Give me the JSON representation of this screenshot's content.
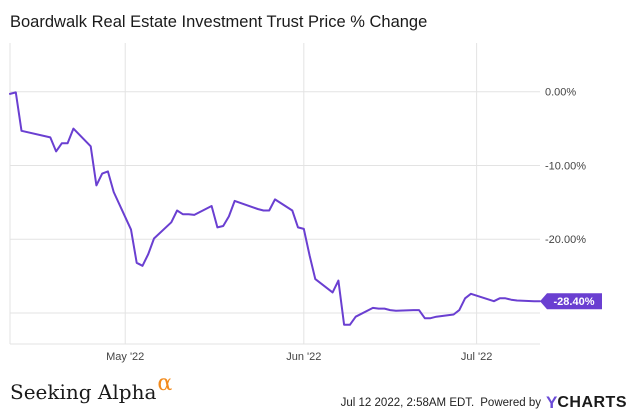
{
  "header": {
    "title": "Boardwalk Real Estate Investment Trust Price % Change"
  },
  "footer": {
    "brand_left_text": "Seeking Alpha",
    "brand_left_mark": "α",
    "timestamp": "Jul 12 2022, 2:58AM EDT.",
    "powered_by": "Powered by",
    "brand_right_mark": "Y",
    "brand_right_text": "CHARTS"
  },
  "colors": {
    "line": "#6a3fd1",
    "grid": "#e3e3e3",
    "last_badge": "#6a3fd1",
    "axis_text": "#444444",
    "brand_alpha": "#f28a1c",
    "brand_ycharts": "#6a4bd6"
  },
  "chart_data": {
    "type": "line",
    "title": "Boardwalk Real Estate Investment Trust Price % Change",
    "xlabel": "",
    "ylabel": "",
    "x_ticks": [
      "May '22",
      "Jun '22",
      "Jul '22"
    ],
    "y_ticks": [
      "0.00%",
      "-10.00%",
      "-20.00%"
    ],
    "y_tick_values": [
      0,
      -10,
      -20
    ],
    "ylim": [
      -34.2,
      6.6
    ],
    "xlim": [
      "2022-04-11",
      "2022-07-12"
    ],
    "grid": true,
    "last_value_label": "-28.40%",
    "series": [
      {
        "x": [
          "2022-04-11",
          "2022-04-12",
          "2022-04-13",
          "2022-04-18",
          "2022-04-19",
          "2022-04-20",
          "2022-04-21",
          "2022-04-22",
          "2022-04-25",
          "2022-04-26",
          "2022-04-27",
          "2022-04-28",
          "2022-04-29",
          "2022-05-02",
          "2022-05-03",
          "2022-05-04",
          "2022-05-05",
          "2022-05-06",
          "2022-05-09",
          "2022-05-10",
          "2022-05-11",
          "2022-05-12",
          "2022-05-13",
          "2022-05-16",
          "2022-05-17",
          "2022-05-18",
          "2022-05-19",
          "2022-05-20",
          "2022-05-24",
          "2022-05-25",
          "2022-05-26",
          "2022-05-27",
          "2022-05-30",
          "2022-05-31",
          "2022-06-01",
          "2022-06-02",
          "2022-06-03",
          "2022-06-06",
          "2022-06-07",
          "2022-06-08",
          "2022-06-09",
          "2022-06-10",
          "2022-06-13",
          "2022-06-14",
          "2022-06-15",
          "2022-06-16",
          "2022-06-17",
          "2022-06-20",
          "2022-06-21",
          "2022-06-22",
          "2022-06-23",
          "2022-06-24",
          "2022-06-27",
          "2022-06-28",
          "2022-06-29",
          "2022-06-30",
          "2022-07-04",
          "2022-07-05",
          "2022-07-06",
          "2022-07-07",
          "2022-07-08",
          "2022-07-11",
          "2022-07-12"
        ],
        "values": [
          -0.3,
          -0.1,
          -5.3,
          -6.2,
          -8.1,
          -7.0,
          -7.0,
          -5.0,
          -7.4,
          -12.7,
          -11.1,
          -10.8,
          -13.6,
          -18.7,
          -23.2,
          -23.6,
          -22.0,
          -19.9,
          -17.7,
          -16.1,
          -16.6,
          -16.6,
          -16.7,
          -15.5,
          -18.4,
          -18.2,
          -16.9,
          -14.8,
          -15.9,
          -16.1,
          -16.1,
          -14.6,
          -16.1,
          -18.4,
          -18.6,
          -22.2,
          -25.4,
          -27.2,
          -25.6,
          -31.6,
          -31.6,
          -30.5,
          -29.3,
          -29.4,
          -29.4,
          -29.6,
          -29.7,
          -29.6,
          -29.6,
          -30.7,
          -30.7,
          -30.5,
          -30.2,
          -29.6,
          -28.0,
          -27.4,
          -28.4,
          -28.0,
          -28.0,
          -28.2,
          -28.3,
          -28.4,
          -28.4
        ]
      }
    ]
  }
}
